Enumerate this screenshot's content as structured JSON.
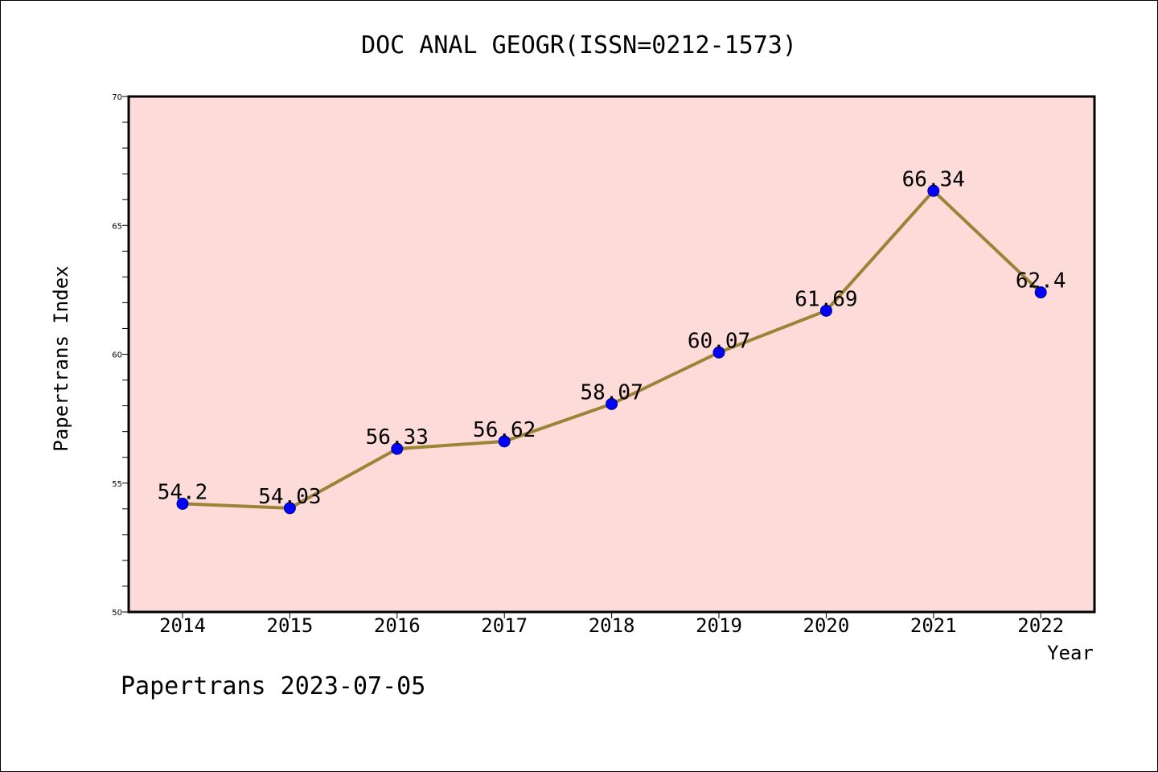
{
  "chart_data": {
    "type": "line",
    "title": "DOC ANAL GEOGR(ISSN=0212-1573)",
    "xlabel": "Year",
    "ylabel": "Papertrans Index",
    "categories": [
      "2014",
      "2015",
      "2016",
      "2017",
      "2018",
      "2019",
      "2020",
      "2021",
      "2022"
    ],
    "values": [
      54.2,
      54.03,
      56.33,
      56.62,
      58.07,
      60.07,
      61.69,
      66.34,
      62.4
    ],
    "data_labels": [
      "54.2",
      "54.03",
      "56.33",
      "56.62",
      "58.07",
      "60.07",
      "61.69",
      "66.34",
      "62.4"
    ],
    "ylim": [
      50,
      70
    ],
    "yticks": [
      "50",
      "55",
      "60",
      "65",
      "70"
    ],
    "grid": false,
    "colors": {
      "plot_background": "#fddbd8",
      "line": "#9b8437",
      "marker": "#0000ff",
      "marker_edge": "#00008b"
    }
  },
  "footer": {
    "text": "Papertrans 2023-07-05"
  }
}
